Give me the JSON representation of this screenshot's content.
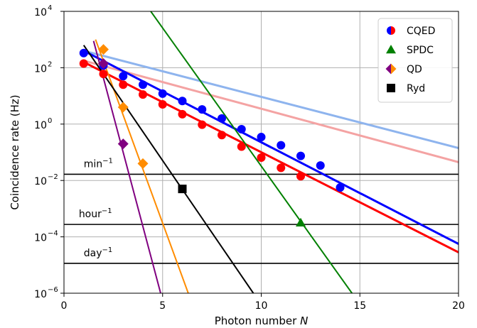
{
  "chart_data": {
    "type": "scatter",
    "xlabel": "Photon number",
    "xlabel_var": "N",
    "ylabel": "Coincidence rate (Hz)",
    "xlim": [
      0,
      20
    ],
    "ylim_log10": [
      -6,
      4
    ],
    "yscale": "log",
    "grid": true,
    "legend_position": "top-right",
    "x_ticks": [
      {
        "value": 0,
        "label": "0"
      },
      {
        "value": 5,
        "label": "5"
      },
      {
        "value": 10,
        "label": "10"
      },
      {
        "value": 15,
        "label": "15"
      },
      {
        "value": 20,
        "label": "20"
      }
    ],
    "y_ticks": [
      {
        "exp": -6,
        "base": "10",
        "sup": "−6"
      },
      {
        "exp": -4,
        "base": "10",
        "sup": "−4"
      },
      {
        "exp": -2,
        "base": "10",
        "sup": "−2"
      },
      {
        "exp": 0,
        "base": "10",
        "sup": "0"
      },
      {
        "exp": 2,
        "base": "10",
        "sup": "2"
      },
      {
        "exp": 4,
        "base": "10",
        "sup": "4"
      }
    ],
    "legend": [
      {
        "label": "CQED",
        "marker": "circle",
        "colors": [
          "#0000ff",
          "#ff0000"
        ]
      },
      {
        "label": "SPDC",
        "marker": "triangle",
        "colors": [
          "#008000"
        ]
      },
      {
        "label": "QD",
        "marker": "diamond",
        "colors": [
          "#800080",
          "#ff8c00"
        ]
      },
      {
        "label": "Ryd",
        "marker": "square",
        "colors": [
          "#000000"
        ]
      }
    ],
    "hlines": [
      {
        "label_base": "min",
        "label_sup": "−1",
        "log10_y": -1.78,
        "label_x": 1.0
      },
      {
        "label_base": "hour",
        "label_sup": "−1",
        "log10_y": -3.56,
        "label_x": 0.75
      },
      {
        "label_base": "day",
        "label_sup": "−1",
        "log10_y": -4.94,
        "label_x": 1.0
      }
    ],
    "lines": [
      {
        "color": "#8eb4ee",
        "width": 3,
        "x": [
          1,
          20
        ],
        "log10_y": [
          2.6,
          -0.85
        ]
      },
      {
        "color": "#f4a3a3",
        "width": 3,
        "x": [
          1,
          20
        ],
        "log10_y": [
          2.25,
          -1.35
        ]
      },
      {
        "color": "#0000ff",
        "width": 3,
        "x": [
          1,
          20
        ],
        "log10_y": [
          2.6,
          -4.25
        ]
      },
      {
        "color": "#ff0000",
        "width": 3,
        "x": [
          1,
          20
        ],
        "log10_y": [
          2.2,
          -4.55
        ]
      },
      {
        "color": "#008000",
        "width": 2,
        "x": [
          4.4,
          14.6
        ],
        "log10_y": [
          4.0,
          -6.0
        ]
      },
      {
        "color": "#ff8c00",
        "width": 2,
        "x": [
          1.6,
          6.3
        ],
        "log10_y": [
          3.0,
          -6.0
        ]
      },
      {
        "color": "#800080",
        "width": 2,
        "x": [
          1.5,
          4.9
        ],
        "log10_y": [
          2.95,
          -6.0
        ]
      },
      {
        "color": "#000000",
        "width": 2,
        "x": [
          1.0,
          9.6
        ],
        "log10_y": [
          2.8,
          -6.0
        ]
      }
    ],
    "series": [
      {
        "name": "CQED",
        "marker": "circle",
        "color": "#0000ff",
        "x": [
          1,
          2,
          3,
          4,
          5,
          6,
          7,
          8,
          9,
          10,
          11,
          12,
          13,
          14
        ],
        "log10_y": [
          2.52,
          2.08,
          1.7,
          1.4,
          1.08,
          0.82,
          0.52,
          0.2,
          -0.18,
          -0.46,
          -0.75,
          -1.13,
          -1.47,
          -2.25
        ]
      },
      {
        "name": "CQED",
        "marker": "circle",
        "color": "#ff0000",
        "x": [
          1,
          2,
          3,
          4,
          5,
          6,
          7,
          8,
          9,
          10,
          11,
          12
        ],
        "log10_y": [
          2.15,
          1.78,
          1.4,
          1.05,
          0.7,
          0.35,
          -0.02,
          -0.39,
          -0.8,
          -1.19,
          -1.55,
          -1.85
        ]
      },
      {
        "name": "SPDC",
        "marker": "triangle",
        "color": "#008000",
        "x": [
          12
        ],
        "log10_y": [
          -3.5
        ]
      },
      {
        "name": "QD",
        "marker": "diamond",
        "color": "#ff8c00",
        "x": [
          2,
          3,
          4
        ],
        "log10_y": [
          2.65,
          0.6,
          -1.4
        ]
      },
      {
        "name": "QD",
        "marker": "diamond",
        "color": "#800080",
        "x": [
          2,
          3
        ],
        "log10_y": [
          2.15,
          -0.7
        ]
      },
      {
        "name": "Ryd",
        "marker": "square",
        "color": "#000000",
        "x": [
          6
        ],
        "log10_y": [
          -2.3
        ]
      }
    ]
  }
}
